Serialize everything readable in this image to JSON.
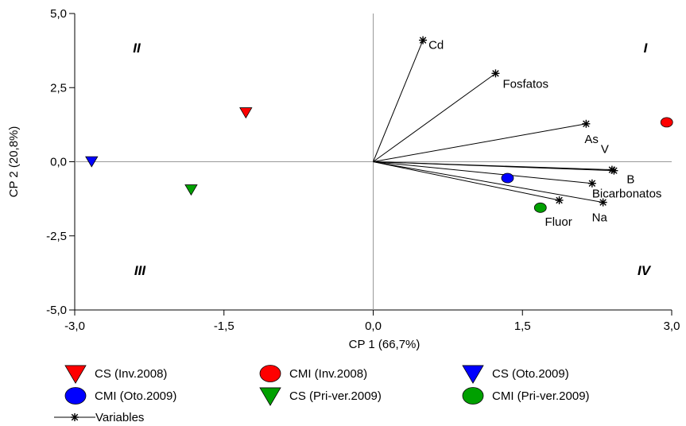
{
  "chart_data": {
    "type": "scatter",
    "subtype": "pca-biplot",
    "xlabel": "CP 1 (66,7%)",
    "ylabel": "CP 2 (20,8%)",
    "xlim": [
      -3.0,
      3.0
    ],
    "ylim": [
      -5.0,
      5.0
    ],
    "x_ticks": [
      -3.0,
      -1.5,
      0.0,
      1.5,
      3.0
    ],
    "x_tick_labels": [
      "-3,0",
      "-1,5",
      "0,0",
      "1,5",
      "3,0"
    ],
    "y_ticks": [
      5.0,
      2.5,
      0.0,
      -2.5,
      -5.0
    ],
    "y_tick_labels": [
      "5,0",
      "2,5",
      "0,0",
      "-2,5",
      "-5,0"
    ],
    "grid": false,
    "reference_lines": [
      {
        "axis": "x",
        "value": 0
      },
      {
        "axis": "y",
        "value": 0
      }
    ],
    "quadrants": [
      {
        "label": "I",
        "position": "top-right"
      },
      {
        "label": "II",
        "position": "top-left"
      },
      {
        "label": "III",
        "position": "bottom-left"
      },
      {
        "label": "IV",
        "position": "bottom-right"
      }
    ],
    "samples": [
      {
        "name": "CS (Inv.2008)",
        "marker": "triangle-down",
        "color": "#ff0000",
        "x": -1.28,
        "y": 1.65
      },
      {
        "name": "CMI (Inv.2008)",
        "marker": "circle",
        "color": "#ff0000",
        "x": 2.95,
        "y": 1.33
      },
      {
        "name": "CS (Oto.2009)",
        "marker": "triangle-down",
        "color": "#0000ff",
        "x": -2.83,
        "y": 0.0
      },
      {
        "name": "CMI (Oto.2009)",
        "marker": "circle",
        "color": "#0000ff",
        "x": 1.35,
        "y": -0.55
      },
      {
        "name": "CS (Pri-ver.2009)",
        "marker": "triangle-down",
        "color": "#00a000",
        "x": -1.83,
        "y": -0.95
      },
      {
        "name": "CMI (Pri-ver.2009)",
        "marker": "circle",
        "color": "#00a000",
        "x": 1.68,
        "y": -1.55
      }
    ],
    "variables_legend": "Variables",
    "variables": [
      {
        "name": "Cd",
        "x": 0.5,
        "y": 4.1
      },
      {
        "name": "Fosfatos",
        "x": 1.23,
        "y": 2.98
      },
      {
        "name": "As",
        "x": 2.14,
        "y": 1.28
      },
      {
        "name": "V",
        "x": 2.4,
        "y": -0.27
      },
      {
        "name": "B",
        "x": 2.42,
        "y": -0.3
      },
      {
        "name": "Bicarbonatos",
        "x": 2.2,
        "y": -0.73
      },
      {
        "name": "Na",
        "x": 2.31,
        "y": -1.37
      },
      {
        "name": "Fluor",
        "x": 1.87,
        "y": -1.3
      }
    ],
    "legend_position": "bottom"
  }
}
